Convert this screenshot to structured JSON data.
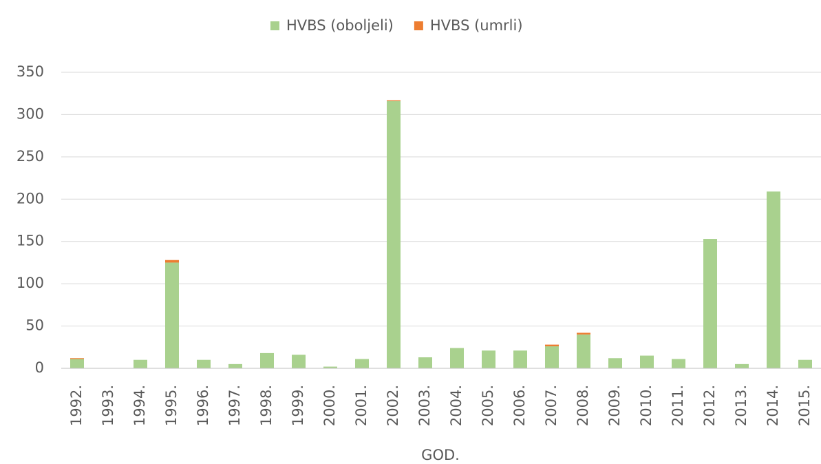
{
  "chart_data": {
    "type": "bar",
    "stacked": true,
    "x_label": "GOD.",
    "categories": [
      "1992.",
      "1993.",
      "1994.",
      "1995.",
      "1996.",
      "1997.",
      "1998.",
      "1999.",
      "2000.",
      "2001.",
      "2002.",
      "2003.",
      "2004.",
      "2005.",
      "2006.",
      "2007.",
      "2008.",
      "2009.",
      "2010.",
      "2011.",
      "2012.",
      "2013.",
      "2014.",
      "2015."
    ],
    "series": [
      {
        "name": "HVBS (oboljeli)",
        "color": "#a9d18e",
        "values": [
          11,
          0,
          10,
          125,
          10,
          5,
          18,
          16,
          2,
          11,
          316,
          13,
          24,
          21,
          21,
          26,
          40,
          12,
          15,
          11,
          153,
          5,
          209,
          10
        ]
      },
      {
        "name": "HVBS (umrli)",
        "color": "#ed7d31",
        "values": [
          1,
          0,
          0,
          3,
          0,
          0,
          0,
          0,
          0,
          0,
          1,
          0,
          0,
          0,
          0,
          2,
          2,
          0,
          0,
          0,
          0,
          0,
          0,
          0
        ]
      }
    ],
    "ylim": [
      0,
      350
    ],
    "yticks": [
      0,
      50,
      100,
      150,
      200,
      250,
      300,
      350
    ],
    "grid": true,
    "legend": "top"
  }
}
